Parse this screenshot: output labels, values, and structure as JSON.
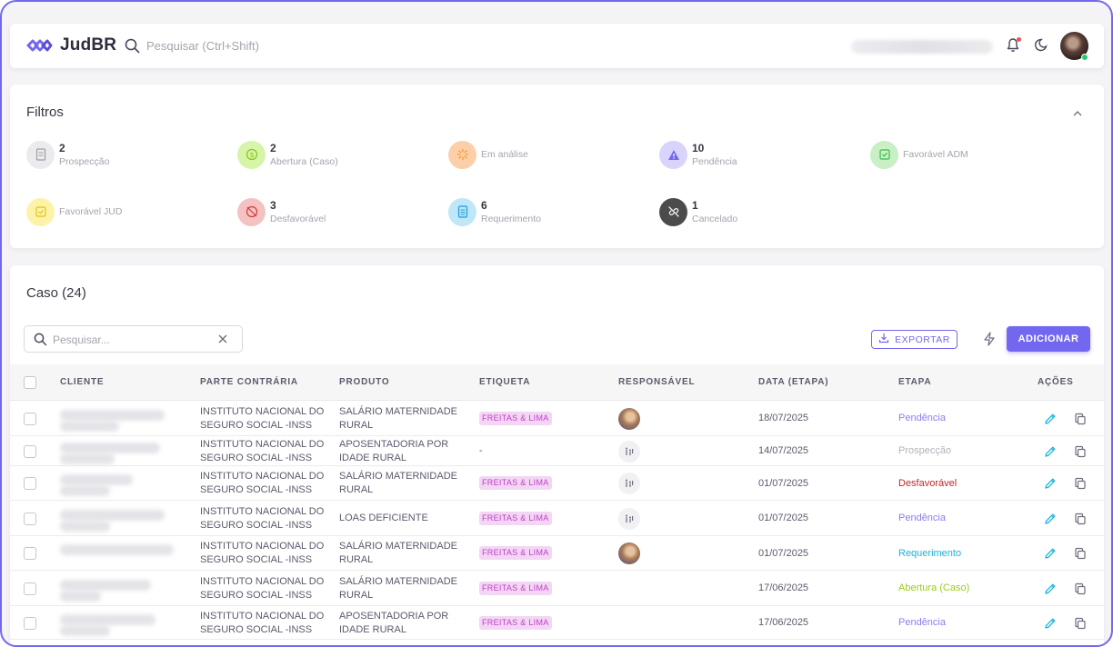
{
  "header": {
    "app_name": "JudBR",
    "search_placeholder": "Pesquisar (Ctrl+Shift)"
  },
  "filters": {
    "title": "Filtros",
    "items": [
      {
        "count": "2",
        "label": "Prospecção",
        "color": "#ebebed",
        "icon": "document-icon"
      },
      {
        "count": "2",
        "label": "Abertura (Caso)",
        "color": "#d6f5a8",
        "icon": "dollar-icon"
      },
      {
        "count": "",
        "label": "Em análise",
        "color": "#fbd0a8",
        "icon": "loader-icon"
      },
      {
        "count": "10",
        "label": "Pendência",
        "color": "#d8d4fb",
        "icon": "alert-triangle-icon"
      },
      {
        "count": "",
        "label": "Favorável ADM",
        "color": "#c8f0c4",
        "icon": "checkbox-icon"
      },
      {
        "count": "",
        "label": "Favorável JUD",
        "color": "#fdf3a8",
        "icon": "checkbox-icon"
      },
      {
        "count": "3",
        "label": "Desfavorável",
        "color": "#f4c2c2",
        "icon": "coin-off-icon"
      },
      {
        "count": "6",
        "label": "Requerimento",
        "color": "#bfe7f7",
        "icon": "list-icon"
      },
      {
        "count": "1",
        "label": "Cancelado",
        "color": "#4b4b4b",
        "icon": "link-off-icon"
      }
    ]
  },
  "table": {
    "title": "Caso (24)",
    "search_placeholder": "Pesquisar...",
    "export_label": "EXPORTAR",
    "add_label": "ADICIONAR",
    "columns": [
      "CLIENTE",
      "PARTE CONTRÁRIA",
      "PRODUTO",
      "ETIQUETA",
      "RESPONSÁVEL",
      "DATA (ETAPA)",
      "ETAPA",
      "AÇÕES"
    ],
    "rows": [
      {
        "parte": [
          "INSTITUTO NACIONAL DO",
          "SEGURO SOCIAL -INSS"
        ],
        "produto": [
          "SALÁRIO MATERNIDADE",
          "RURAL"
        ],
        "etiqueta": "FREITAS & LIMA",
        "resp": "photo",
        "data": "18/07/2025",
        "etapa": "Pendência",
        "etapa_color": "#8c7cf0"
      },
      {
        "parte": [
          "INSTITUTO NACIONAL DO",
          "SEGURO SOCIAL -INSS"
        ],
        "produto": [
          "APOSENTADORIA POR",
          "IDADE RURAL"
        ],
        "etiqueta": "-",
        "resp": "icon",
        "data": "14/07/2025",
        "etapa": "Prospecção",
        "etapa_color": "#b4b2bb"
      },
      {
        "parte": [
          "INSTITUTO NACIONAL DO",
          "SEGURO SOCIAL -INSS"
        ],
        "produto": [
          "SALÁRIO MATERNIDADE",
          "RURAL"
        ],
        "etiqueta": "FREITAS & LIMA",
        "resp": "icon",
        "data": "01/07/2025",
        "etapa": "Desfavorável",
        "etapa_color": "#c0272d"
      },
      {
        "parte": [
          "INSTITUTO NACIONAL DO",
          "SEGURO SOCIAL -INSS"
        ],
        "produto": [
          "LOAS DEFICIENTE",
          ""
        ],
        "etiqueta": "FREITAS & LIMA",
        "resp": "icon",
        "data": "01/07/2025",
        "etapa": "Pendência",
        "etapa_color": "#8c7cf0"
      },
      {
        "parte": [
          "INSTITUTO NACIONAL DO",
          "SEGURO SOCIAL -INSS"
        ],
        "produto": [
          "SALÁRIO MATERNIDADE",
          "RURAL"
        ],
        "etiqueta": "FREITAS & LIMA",
        "resp": "photo",
        "data": "01/07/2025",
        "etapa": "Requerimento",
        "etapa_color": "#1ab3d8"
      },
      {
        "parte": [
          "INSTITUTO NACIONAL DO",
          "SEGURO SOCIAL -INSS"
        ],
        "produto": [
          "SALÁRIO MATERNIDADE",
          "RURAL"
        ],
        "etiqueta": "FREITAS & LIMA",
        "resp": "",
        "data": "17/06/2025",
        "etapa": "Abertura (Caso)",
        "etapa_color": "#9ccc1c"
      },
      {
        "parte": [
          "INSTITUTO NACIONAL DO",
          "SEGURO SOCIAL -INSS"
        ],
        "produto": [
          "APOSENTADORIA POR",
          "IDADE RURAL"
        ],
        "etiqueta": "FREITAS & LIMA",
        "resp": "",
        "data": "17/06/2025",
        "etapa": "Pendência",
        "etapa_color": "#8c7cf0"
      }
    ]
  }
}
